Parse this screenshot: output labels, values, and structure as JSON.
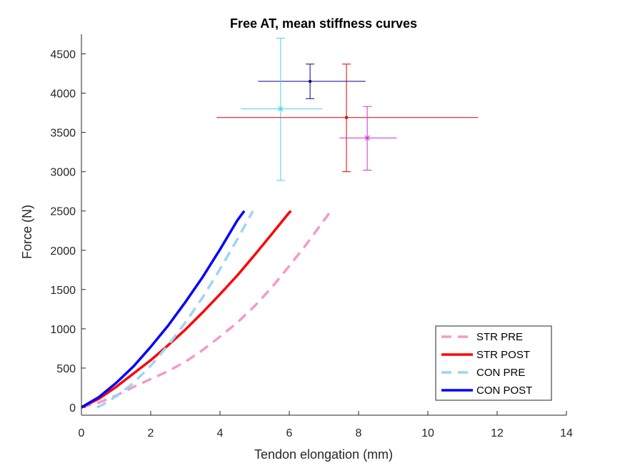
{
  "chart_data": {
    "type": "line",
    "title": "Free AT, mean stiffness curves",
    "xlabel": "Tendon elongation (mm)",
    "ylabel": "Force (N)",
    "xlim": [
      0,
      14
    ],
    "ylim": [
      -100,
      4750
    ],
    "xticks": [
      0,
      2,
      4,
      6,
      8,
      10,
      12,
      14
    ],
    "yticks": [
      0,
      500,
      1000,
      1500,
      2000,
      2500,
      3000,
      3500,
      4000,
      4500
    ],
    "grid": false,
    "legend_position": "bottom-right",
    "series": [
      {
        "name": "STR PRE",
        "color": "#f49ac9",
        "style": "dashed",
        "x": [
          0,
          0.5,
          1,
          1.5,
          2,
          2.5,
          3,
          3.5,
          4,
          4.5,
          5,
          5.5,
          6,
          6.5,
          7,
          7.2
        ],
        "y": [
          0,
          60,
          150,
          260,
          360,
          460,
          580,
          730,
          900,
          1080,
          1290,
          1530,
          1800,
          2080,
          2380,
          2500
        ]
      },
      {
        "name": "STR POST",
        "color": "#ff0000",
        "style": "solid",
        "x": [
          0,
          0.5,
          1,
          1.5,
          2,
          2.5,
          3,
          3.5,
          4,
          4.5,
          5,
          5.5,
          6,
          6.05
        ],
        "y": [
          0,
          110,
          260,
          430,
          600,
          790,
          990,
          1210,
          1440,
          1680,
          1940,
          2210,
          2480,
          2500
        ]
      },
      {
        "name": "CON PRE",
        "color": "#9dd4f5",
        "style": "dashed",
        "x": [
          0.45,
          0.6,
          1,
          1.5,
          2,
          2.5,
          3,
          3.5,
          4,
          4.5,
          4.95
        ],
        "y": [
          0,
          30,
          140,
          310,
          530,
          790,
          1080,
          1400,
          1760,
          2140,
          2500
        ]
      },
      {
        "name": "CON POST",
        "color": "#0000ff",
        "style": "solid",
        "x": [
          0,
          0.5,
          1,
          1.5,
          2,
          2.5,
          3,
          3.5,
          4,
          4.5,
          4.7
        ],
        "y": [
          0,
          130,
          310,
          520,
          770,
          1040,
          1340,
          1660,
          2010,
          2380,
          2500
        ]
      }
    ],
    "error_points": [
      {
        "marker": "dot",
        "color": "#00008b",
        "x": 6.6,
        "y": 4150,
        "x_err": [
          5.1,
          8.2
        ],
        "y_err": [
          3930,
          4370
        ]
      },
      {
        "marker": "star",
        "color": "#4dd2e0",
        "x": 5.75,
        "y": 3800,
        "x_err": [
          4.6,
          6.95
        ],
        "y_err": [
          2890,
          4700
        ]
      },
      {
        "marker": "dot",
        "color": "#dd0000",
        "x": 7.65,
        "y": 3690,
        "x_err": [
          3.9,
          11.45
        ],
        "y_err": [
          3000,
          4370
        ]
      },
      {
        "marker": "star",
        "color": "#cc33cc",
        "x": 8.25,
        "y": 3430,
        "x_err": [
          7.45,
          9.1
        ],
        "y_err": [
          3020,
          3830
        ]
      }
    ]
  }
}
